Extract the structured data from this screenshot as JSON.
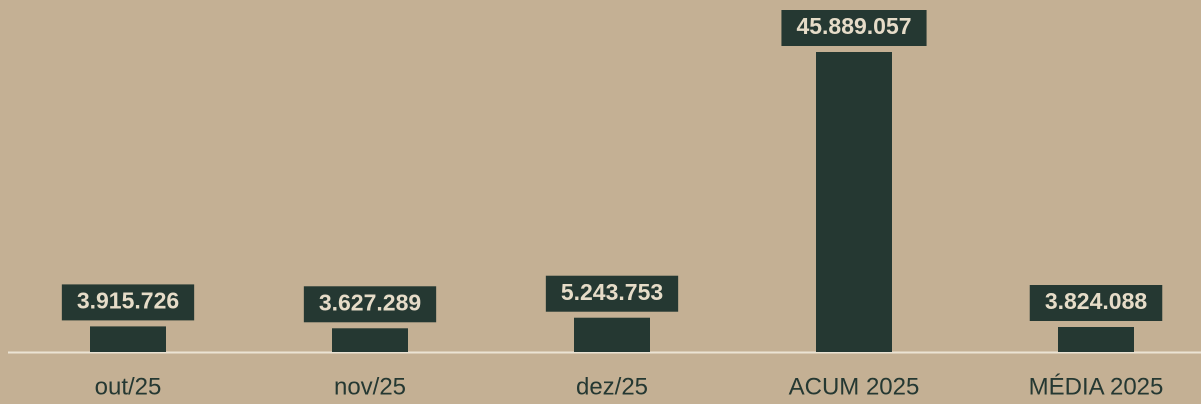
{
  "chart_data": {
    "type": "bar",
    "categories": [
      "out/25",
      "nov/25",
      "dez/25",
      "ACUM 2025",
      "MÉDIA 2025"
    ],
    "values": [
      3915726,
      3627289,
      5243753,
      45889057,
      3824088
    ],
    "value_labels": [
      "3.915.726",
      "3.627.289",
      "5.243.753",
      "45.889.057",
      "3.824.088"
    ],
    "color": "#253832"
  }
}
